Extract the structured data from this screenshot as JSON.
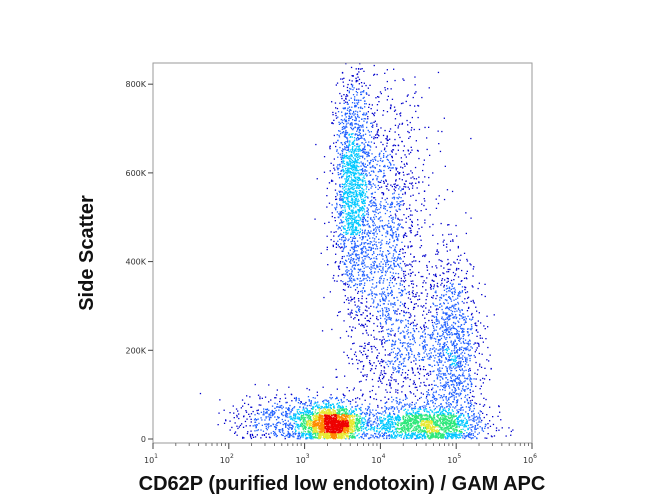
{
  "chart_data": {
    "type": "scatter",
    "style": "density-colored flow cytometry dot plot",
    "xlabel": "CD62P (purified low endotoxin) / GAM APC",
    "ylabel": "Side Scatter",
    "x_scale": "log",
    "xlim": [
      10,
      1000000
    ],
    "ylim": [
      0,
      850000
    ],
    "x_ticks": [
      {
        "value": 10,
        "base": "10",
        "exp": "1"
      },
      {
        "value": 100,
        "base": "10",
        "exp": "2"
      },
      {
        "value": 1000,
        "base": "10",
        "exp": "3"
      },
      {
        "value": 10000,
        "base": "10",
        "exp": "4"
      },
      {
        "value": 100000,
        "base": "10",
        "exp": "5"
      },
      {
        "value": 1000000,
        "base": "10",
        "exp": "6"
      }
    ],
    "y_ticks": [
      {
        "value": 0,
        "label": "0"
      },
      {
        "value": 200000,
        "label": "200K"
      },
      {
        "value": 400000,
        "label": "400K"
      },
      {
        "value": 600000,
        "label": "600K"
      },
      {
        "value": 800000,
        "label": "800K"
      }
    ],
    "grid": false,
    "legend": "none",
    "density_colors": [
      "#0000cc",
      "#1f5fff",
      "#00c8ff",
      "#2de87a",
      "#e8e830",
      "#ff8a00",
      "#ee0000"
    ],
    "populations": [
      {
        "count": 1900,
        "x_log10_mean": 3.35,
        "x_log10_sd": 0.2,
        "y_mean": 35000,
        "y_sd": 22000
      },
      {
        "count": 1500,
        "x_log10_mean": 3.62,
        "x_log10_sd": 0.12,
        "y_mean": 570000,
        "y_sd": 120000
      },
      {
        "count": 1700,
        "x_log10_mean": 4.05,
        "x_log10_sd": 0.3,
        "y_mean": 450000,
        "y_sd": 180000
      },
      {
        "count": 1500,
        "x_log10_mean": 4.55,
        "x_log10_sd": 0.4,
        "y_mean": 35000,
        "y_sd": 20000
      },
      {
        "count": 1100,
        "x_log10_mean": 4.95,
        "x_log10_sd": 0.18,
        "y_mean": 200000,
        "y_sd": 110000
      },
      {
        "count": 550,
        "x_log10_mean": 4.45,
        "x_log10_sd": 0.35,
        "y_mean": 180000,
        "y_sd": 80000
      },
      {
        "count": 500,
        "x_log10_mean": 2.7,
        "x_log10_sd": 0.32,
        "y_mean": 45000,
        "y_sd": 28000
      }
    ]
  }
}
